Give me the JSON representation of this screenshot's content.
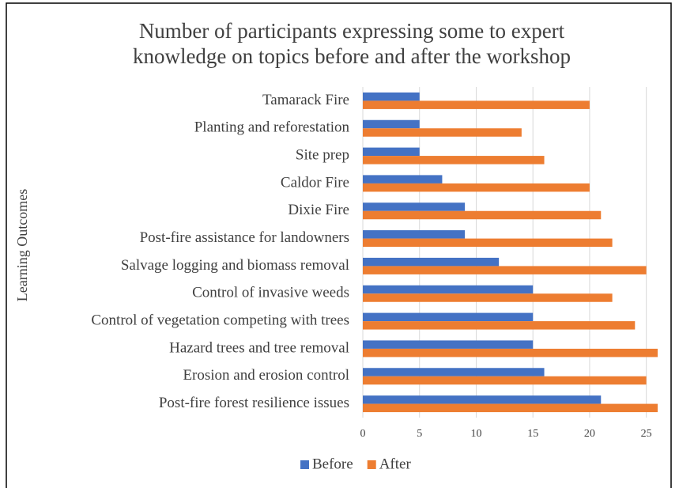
{
  "chart_data": {
    "type": "barh",
    "title": [
      "Number of participants expressing some to expert",
      "knowledge on topics before and after the workshop"
    ],
    "y_label": "Learning Outcomes",
    "categories": [
      "Tamarack Fire",
      "Planting and reforestation",
      "Site prep",
      "Caldor Fire",
      "Dixie Fire",
      "Post-fire assistance for landowners",
      "Salvage logging and biomass removal",
      "Control of invasive weeds",
      "Control of vegetation competing with trees",
      "Hazard trees and tree removal ",
      "Erosion and erosion control",
      "Post-fire forest resilience issues"
    ],
    "series": [
      {
        "name": "Before",
        "color": "#4472c4",
        "values": [
          5,
          5,
          5,
          7,
          9,
          9,
          12,
          15,
          15,
          15,
          16,
          21
        ]
      },
      {
        "name": "After",
        "color": "#ed7d31",
        "values": [
          20,
          14,
          16,
          20,
          21,
          22,
          25,
          22,
          24,
          26,
          25,
          26
        ]
      }
    ],
    "xlim": [
      0,
      26
    ],
    "xticks": [
      0,
      5,
      10,
      15,
      20,
      25
    ],
    "grid": true,
    "legend": "bottom"
  }
}
